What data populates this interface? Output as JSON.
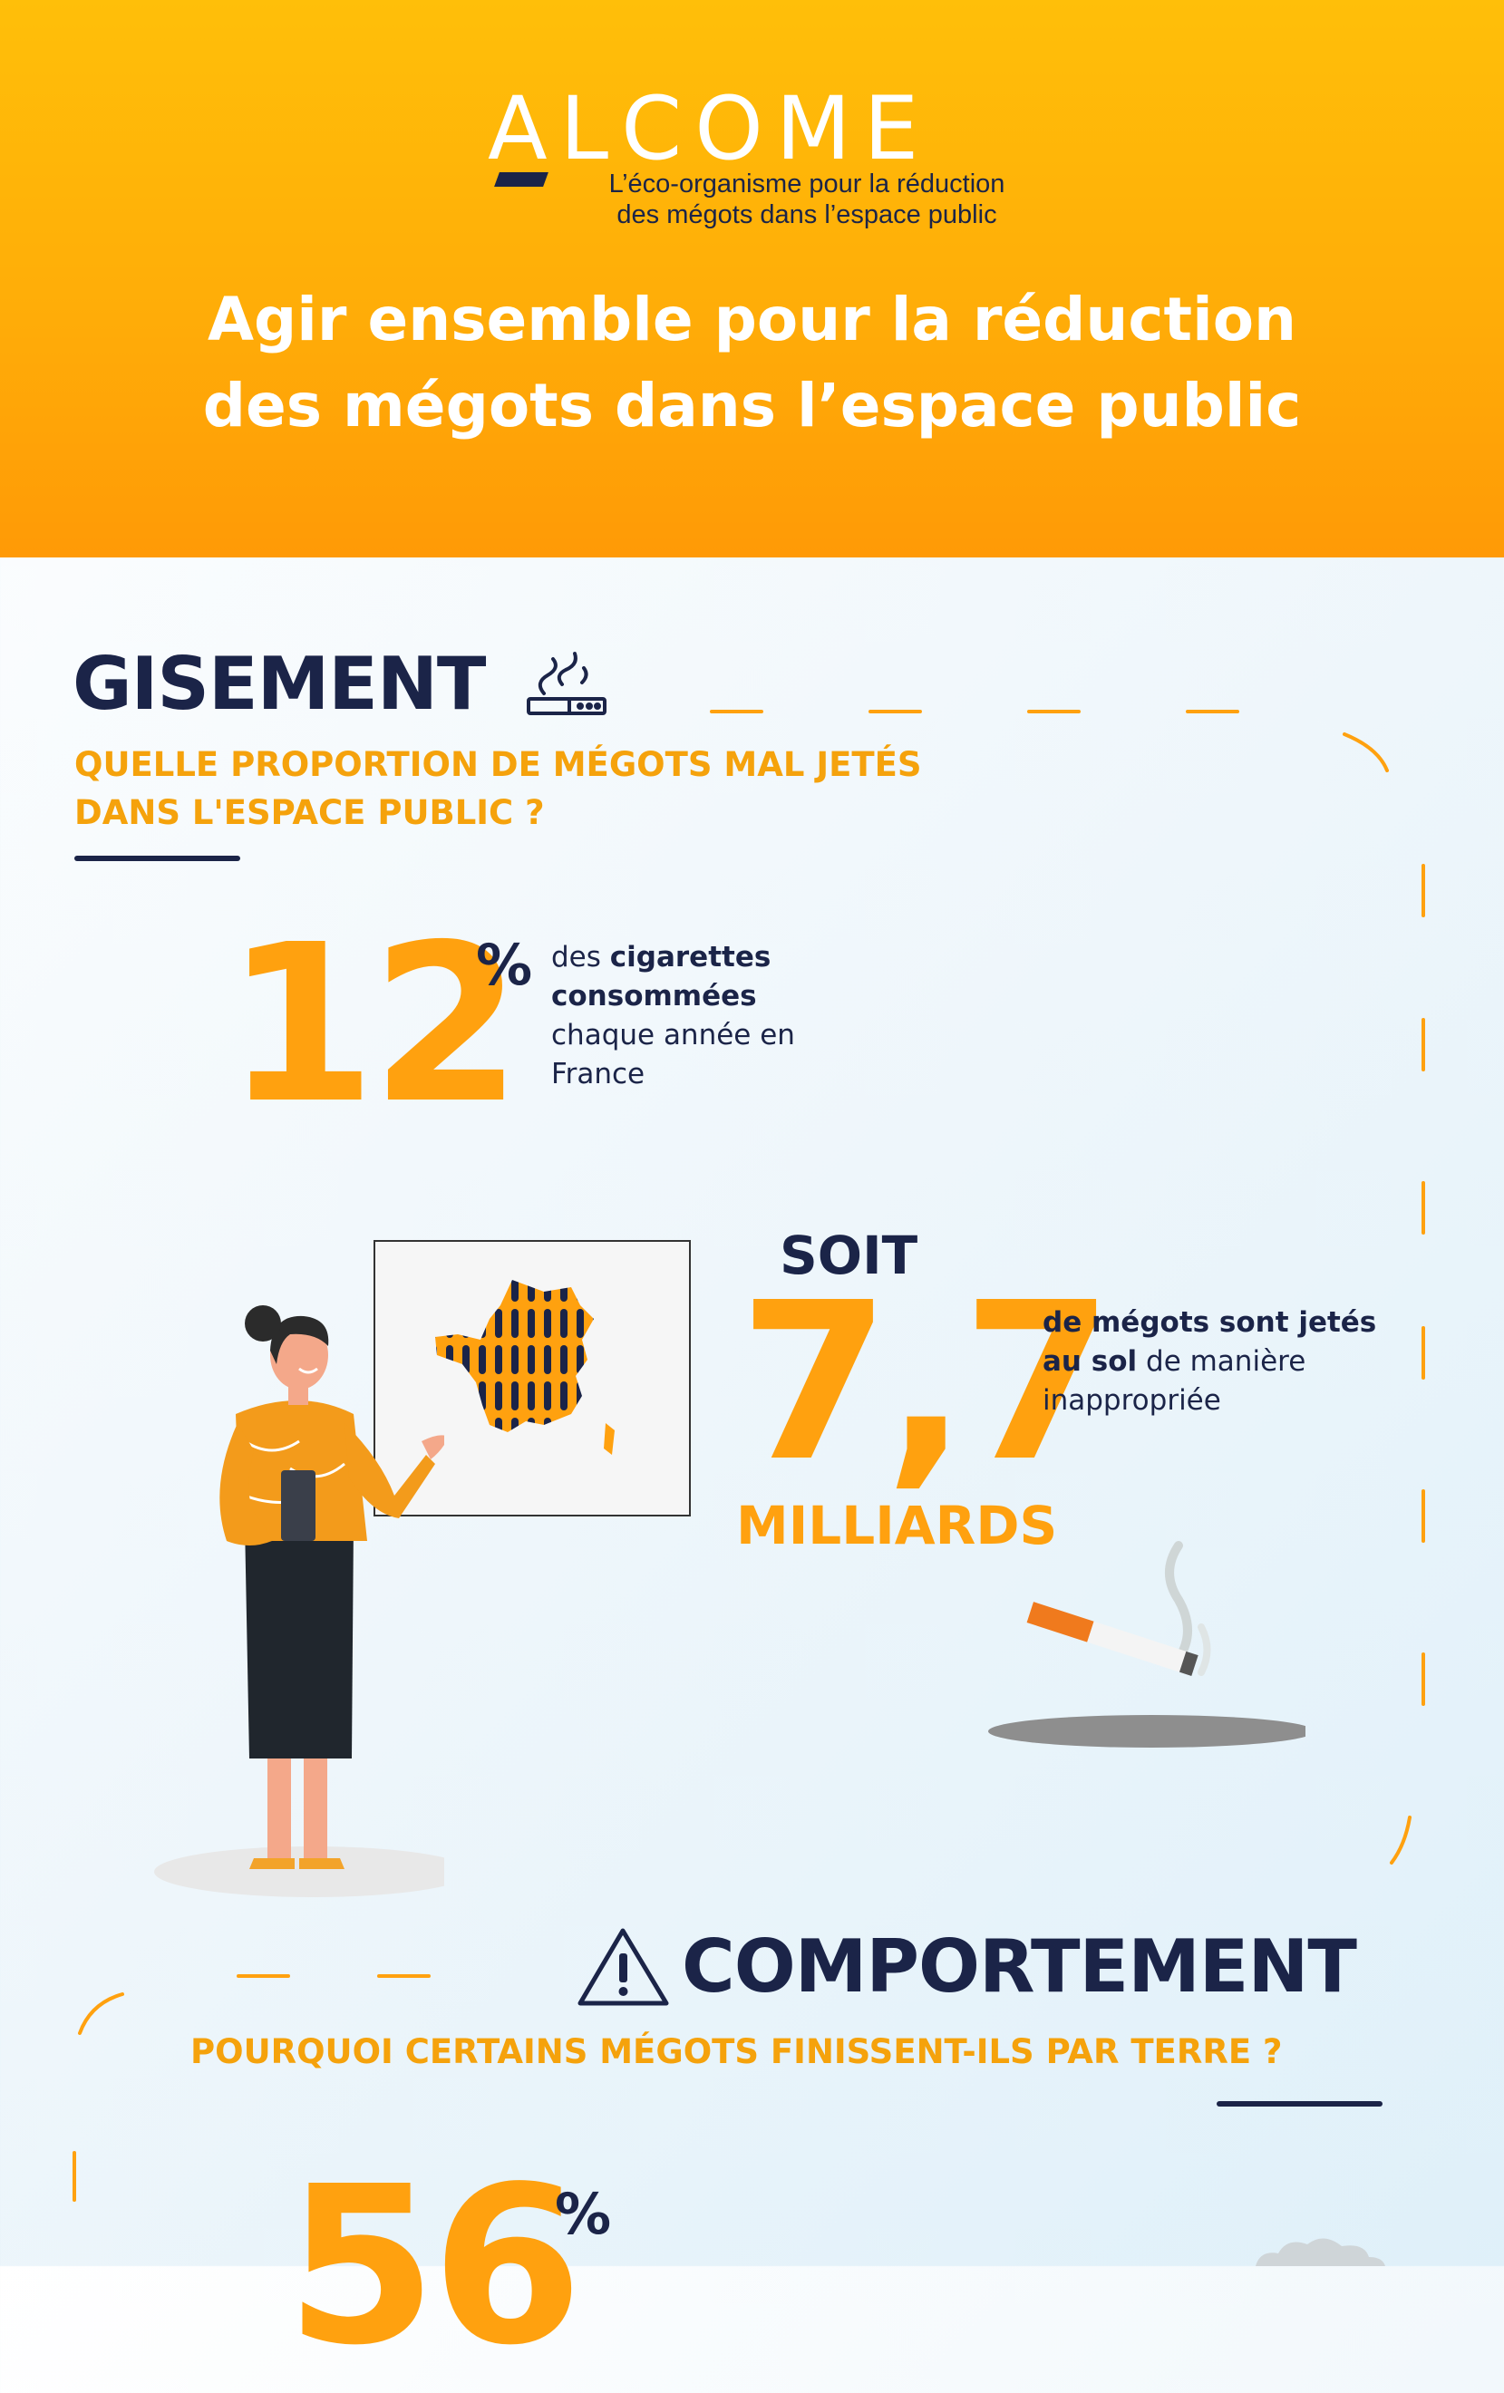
{
  "header": {
    "logo_text": "ALCOME",
    "tagline_line1": "L’éco-organisme pour la réduction",
    "tagline_line2": "des mégots dans l’espace public",
    "title_line1": "Agir ensemble pour la réduction",
    "title_line2": "des mégots dans l’espace public"
  },
  "gisement": {
    "title": "GISEMENT",
    "icon": "cigarette-smoke-icon",
    "question_line1": "QUELLE PROPORTION DE MÉGOTS MAL JETÉS",
    "question_line2": "DANS L'ESPACE PUBLIC ?",
    "stat1_value": "12",
    "stat1_unit": "%",
    "stat1_text_part1": "des ",
    "stat1_text_bold": "cigarettes consommées",
    "stat1_text_part2": " chaque année en France",
    "soit_label": "SOIT",
    "stat2_value": "7,7",
    "stat2_unit": "MILLIARDS",
    "stat2_text_bold": "de mégots sont jetés au sol",
    "stat2_text_part2": " de manière inappropriée"
  },
  "comportement": {
    "title": "COMPORTEMENT",
    "icon": "warning-icon",
    "question": "POURQUOI CERTAINS MÉGOTS FINISSENT-ILS PAR TERRE ?",
    "stat_value": "56",
    "stat_unit": "%"
  },
  "colors": {
    "orange": "#ffa10f",
    "navy": "#1b2448",
    "header_yellow": "#ffbf09"
  }
}
